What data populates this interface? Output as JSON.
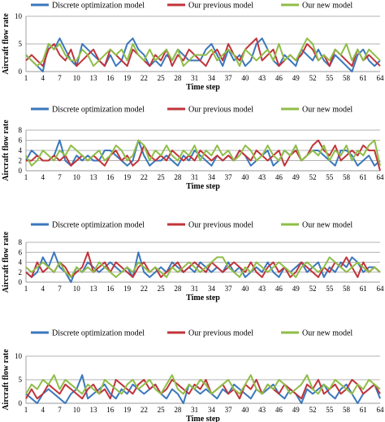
{
  "colors": {
    "discrete": "#3a77bc",
    "previous": "#c0343a",
    "new": "#8fbd48",
    "grid": "#9a9a9a"
  },
  "chart_data": [
    {
      "type": "line",
      "xlabel": "Time step",
      "ylabel": "Aircraft flow rate",
      "ylim": [
        0,
        10
      ],
      "yticks": [
        0,
        5,
        10
      ],
      "x_tick_labels": [
        "1",
        "4",
        "7",
        "10",
        "13",
        "16",
        "19",
        "22",
        "25",
        "28",
        "31",
        "34",
        "37",
        "40",
        "43",
        "46",
        "49",
        "52",
        "55",
        "58",
        "61",
        "64"
      ],
      "series": [
        {
          "name": "Discrete optimization model",
          "color": "#3a77bc",
          "values": [
            3,
            2,
            1,
            0,
            5,
            4,
            6,
            4,
            2,
            1,
            5,
            4,
            3,
            2,
            1,
            3,
            1,
            2,
            5,
            6,
            4,
            3,
            1,
            2,
            1,
            3,
            2,
            4,
            3,
            2,
            2,
            2,
            4,
            5,
            3,
            1,
            4,
            2,
            3,
            1,
            2,
            5,
            6,
            4,
            2,
            1,
            3,
            2,
            1,
            4,
            3,
            2,
            4,
            2,
            1,
            3,
            2,
            1,
            0,
            3,
            4,
            2,
            1,
            2
          ]
        },
        {
          "name": "Our previous model",
          "color": "#c0343a",
          "values": [
            2,
            3,
            2,
            1,
            4,
            5,
            3,
            2,
            4,
            1,
            2,
            3,
            4,
            2,
            1,
            4,
            3,
            2,
            1,
            4,
            3,
            2,
            1,
            3,
            2,
            4,
            1,
            3,
            2,
            4,
            3,
            2,
            1,
            3,
            4,
            2,
            5,
            3,
            2,
            4,
            5,
            6,
            2,
            3,
            4,
            1,
            2,
            3,
            2,
            3,
            5,
            4,
            2,
            3,
            1,
            4,
            3,
            2,
            1,
            4,
            2,
            3,
            2,
            1
          ]
        },
        {
          "name": "Our new model",
          "color": "#8fbd48",
          "values": [
            3,
            2,
            1,
            2,
            5,
            4,
            5,
            3,
            2,
            2,
            4,
            3,
            1,
            2,
            3,
            4,
            3,
            4,
            2,
            5,
            3,
            2,
            4,
            2,
            3,
            4,
            2,
            4,
            1,
            2,
            3,
            3,
            3,
            4,
            2,
            3,
            4,
            3,
            1,
            4,
            3,
            2,
            3,
            4,
            2,
            5,
            2,
            3,
            2,
            4,
            6,
            5,
            2,
            3,
            2,
            4,
            3,
            5,
            2,
            4,
            2,
            4,
            3,
            2
          ]
        }
      ]
    },
    {
      "type": "line",
      "xlabel": "Time step",
      "ylabel": "Aircraft flow rate",
      "ylim": [
        0,
        8
      ],
      "yticks": [
        0,
        2,
        4,
        6,
        8
      ],
      "x_tick_labels": [
        "1",
        "4",
        "7",
        "10",
        "13",
        "16",
        "19",
        "22",
        "25",
        "28",
        "31",
        "34",
        "37",
        "40",
        "43",
        "46",
        "49",
        "52",
        "55",
        "58",
        "61",
        "64"
      ],
      "series": [
        {
          "name": "Discrete optimization model",
          "color": "#3a77bc",
          "values": [
            2,
            4,
            3,
            2,
            2,
            3,
            6,
            2,
            1,
            3,
            2,
            3,
            2,
            2,
            4,
            4,
            3,
            2,
            1,
            2,
            6,
            3,
            1,
            2,
            2,
            3,
            2,
            1,
            3,
            2,
            4,
            3,
            2,
            1,
            3,
            2,
            3,
            2,
            4,
            3,
            1,
            2,
            3,
            4,
            1,
            2,
            4,
            3,
            5,
            2,
            3,
            4,
            4,
            3,
            2,
            1,
            4,
            4,
            3,
            1,
            2,
            3,
            1,
            2
          ]
        },
        {
          "name": "Our previous model",
          "color": "#c0343a",
          "values": [
            2,
            2,
            3,
            2,
            2,
            3,
            2,
            3,
            1,
            2,
            3,
            2,
            3,
            2,
            1,
            3,
            4,
            2,
            3,
            1,
            2,
            5,
            3,
            2,
            3,
            2,
            4,
            3,
            2,
            3,
            2,
            4,
            3,
            2,
            3,
            2,
            3,
            2,
            4,
            3,
            2,
            4,
            3,
            2,
            3,
            4,
            1,
            3,
            4,
            2,
            3,
            5,
            6,
            4,
            3,
            5,
            2,
            3,
            4,
            3,
            5,
            4,
            4,
            0
          ]
        },
        {
          "name": "Our new model",
          "color": "#8fbd48",
          "values": [
            3,
            1,
            2,
            4,
            3,
            2,
            4,
            3,
            5,
            4,
            3,
            2,
            3,
            4,
            2,
            3,
            5,
            4,
            2,
            3,
            6,
            5,
            2,
            4,
            3,
            5,
            3,
            2,
            4,
            3,
            5,
            2,
            4,
            3,
            5,
            3,
            4,
            2,
            3,
            5,
            4,
            2,
            3,
            5,
            3,
            2,
            4,
            3,
            5,
            2,
            3,
            4,
            3,
            5,
            2,
            4,
            3,
            5,
            2,
            4,
            3,
            5,
            6,
            1
          ]
        }
      ]
    },
    {
      "type": "line",
      "xlabel": "Time step",
      "ylabel": "Aircraft flow rate",
      "ylim": [
        0,
        8
      ],
      "yticks": [
        0,
        2,
        4,
        6,
        8
      ],
      "x_tick_labels": [
        "1",
        "4",
        "7",
        "10",
        "13",
        "16",
        "19",
        "22",
        "25",
        "28",
        "31",
        "34",
        "37",
        "40",
        "43",
        "46",
        "49",
        "52",
        "55",
        "58",
        "61",
        "64"
      ],
      "series": [
        {
          "name": "Discrete optimization model",
          "color": "#3a77bc",
          "values": [
            2,
            1,
            2,
            5,
            3,
            6,
            3,
            2,
            0,
            3,
            2,
            4,
            3,
            2,
            3,
            4,
            3,
            2,
            3,
            1,
            6,
            2,
            1,
            2,
            3,
            2,
            4,
            3,
            2,
            3,
            2,
            4,
            3,
            2,
            3,
            2,
            4,
            2,
            3,
            1,
            2,
            3,
            2,
            4,
            2,
            1,
            3,
            2,
            3,
            4,
            2,
            3,
            4,
            1,
            3,
            2,
            4,
            3,
            5,
            4,
            2,
            3,
            3,
            2
          ]
        },
        {
          "name": "Our previous model",
          "color": "#c0343a",
          "values": [
            2,
            1,
            4,
            2,
            3,
            2,
            4,
            3,
            1,
            2,
            3,
            6,
            2,
            3,
            4,
            2,
            4,
            3,
            2,
            1,
            3,
            4,
            2,
            3,
            1,
            2,
            3,
            4,
            2,
            3,
            4,
            3,
            2,
            4,
            3,
            2,
            3,
            4,
            3,
            2,
            4,
            2,
            1,
            3,
            4,
            2,
            3,
            1,
            2,
            4,
            3,
            2,
            1,
            3,
            2,
            4,
            3,
            5,
            3,
            1,
            4,
            2,
            3,
            2
          ]
        },
        {
          "name": "Our new model",
          "color": "#8fbd48",
          "values": [
            3,
            2,
            3,
            4,
            3,
            2,
            4,
            2,
            1,
            3,
            2,
            3,
            2,
            4,
            3,
            2,
            1,
            2,
            3,
            2,
            4,
            3,
            2,
            3,
            2,
            1,
            3,
            2,
            3,
            4,
            3,
            2,
            3,
            4,
            5,
            5,
            3,
            2,
            1,
            3,
            2,
            4,
            3,
            2,
            3,
            4,
            3,
            2,
            1,
            3,
            4,
            3,
            2,
            3,
            5,
            4,
            3,
            2,
            3,
            4,
            3,
            2,
            3,
            2
          ]
        }
      ]
    },
    {
      "type": "line",
      "xlabel": "Time step",
      "ylabel": "Aircraft flow rate",
      "ylim": [
        0,
        10
      ],
      "yticks": [
        0,
        5,
        10
      ],
      "x_tick_labels": [
        "1",
        "4",
        "7",
        "10",
        "13",
        "16",
        "19",
        "22",
        "25",
        "28",
        "31",
        "34",
        "37",
        "40",
        "43",
        "46",
        "49",
        "52",
        "55",
        "58",
        "61",
        "64"
      ],
      "series": [
        {
          "name": "Discrete optimization model",
          "color": "#3a77bc",
          "values": [
            2,
            1,
            0,
            2,
            3,
            2,
            1,
            0,
            2,
            3,
            6,
            1,
            2,
            3,
            4,
            2,
            1,
            3,
            2,
            4,
            3,
            2,
            3,
            4,
            2,
            1,
            3,
            2,
            0,
            4,
            3,
            2,
            3,
            2,
            1,
            3,
            2,
            4,
            3,
            2,
            1,
            3,
            2,
            3,
            4,
            2,
            1,
            3,
            2,
            0,
            3,
            2,
            3,
            4,
            2,
            1,
            3,
            4,
            2,
            0,
            2,
            3,
            4,
            1
          ]
        },
        {
          "name": "Our previous model",
          "color": "#c0343a",
          "values": [
            1,
            3,
            1,
            2,
            4,
            3,
            2,
            4,
            3,
            2,
            1,
            3,
            4,
            2,
            3,
            1,
            5,
            4,
            3,
            2,
            4,
            5,
            3,
            4,
            2,
            3,
            5,
            4,
            3,
            2,
            4,
            3,
            5,
            2,
            3,
            4,
            2,
            3,
            1,
            4,
            3,
            5,
            2,
            4,
            3,
            2,
            4,
            3,
            2,
            1,
            4,
            3,
            5,
            2,
            3,
            4,
            2,
            3,
            5,
            4,
            2,
            3,
            4,
            2
          ]
        },
        {
          "name": "Our new model",
          "color": "#8fbd48",
          "values": [
            2,
            4,
            3,
            5,
            4,
            6,
            3,
            5,
            4,
            3,
            2,
            4,
            3,
            2,
            5,
            4,
            3,
            2,
            4,
            5,
            3,
            4,
            5,
            3,
            2,
            4,
            6,
            3,
            2,
            4,
            3,
            5,
            4,
            2,
            3,
            4,
            5,
            3,
            2,
            4,
            6,
            3,
            2,
            4,
            3,
            5,
            4,
            2,
            3,
            4,
            6,
            3,
            2,
            4,
            3,
            5,
            4,
            3,
            2,
            4,
            3,
            5,
            4,
            3
          ]
        }
      ]
    }
  ]
}
